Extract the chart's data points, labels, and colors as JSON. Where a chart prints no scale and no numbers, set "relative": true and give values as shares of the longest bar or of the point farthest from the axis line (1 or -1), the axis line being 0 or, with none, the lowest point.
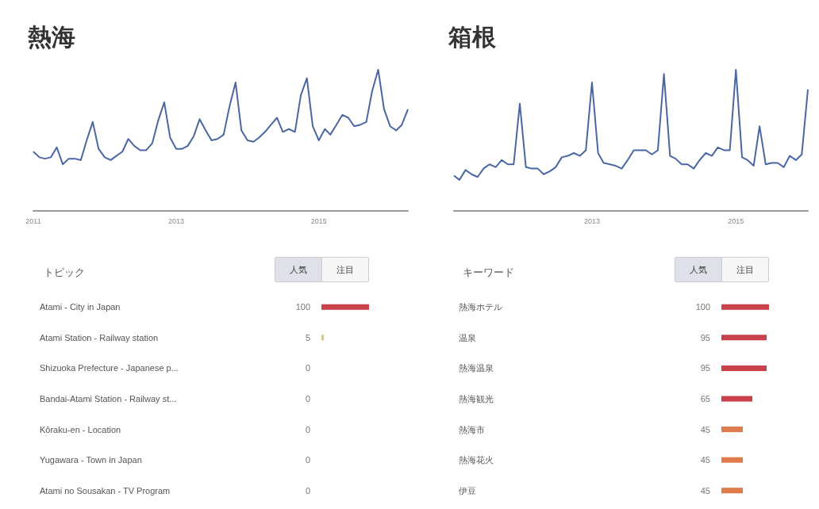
{
  "chart_data": [
    {
      "type": "line",
      "title": "熱海",
      "relative": true,
      "xlim": [
        "2011-01",
        "2016-04"
      ],
      "xticks": [
        "2011",
        "2013",
        "2015"
      ],
      "x": [
        "2011-01",
        "2011-02",
        "2011-03",
        "2011-04",
        "2011-05",
        "2011-06",
        "2011-07",
        "2011-08",
        "2011-09",
        "2011-10",
        "2011-11",
        "2011-12",
        "2012-01",
        "2012-02",
        "2012-03",
        "2012-04",
        "2012-05",
        "2012-06",
        "2012-07",
        "2012-08",
        "2012-09",
        "2012-10",
        "2012-11",
        "2012-12",
        "2013-01",
        "2013-02",
        "2013-03",
        "2013-04",
        "2013-05",
        "2013-06",
        "2013-07",
        "2013-08",
        "2013-09",
        "2013-10",
        "2013-11",
        "2013-12",
        "2014-01",
        "2014-02",
        "2014-03",
        "2014-04",
        "2014-05",
        "2014-06",
        "2014-07",
        "2014-08",
        "2014-09",
        "2014-10",
        "2014-11",
        "2014-12",
        "2015-01",
        "2015-02",
        "2015-03",
        "2015-04",
        "2015-05",
        "2015-06",
        "2015-07",
        "2015-08",
        "2015-09",
        "2015-10",
        "2015-11",
        "2015-12",
        "2016-01",
        "2016-02",
        "2016-03",
        "2016-04"
      ],
      "series": [
        {
          "color": "#4a67a3",
          "values": [
            0.42,
            0.38,
            0.37,
            0.38,
            0.45,
            0.33,
            0.37,
            0.37,
            0.36,
            0.5,
            0.63,
            0.44,
            0.38,
            0.36,
            0.39,
            0.42,
            0.51,
            0.46,
            0.43,
            0.43,
            0.48,
            0.64,
            0.77,
            0.52,
            0.44,
            0.44,
            0.46,
            0.53,
            0.65,
            0.57,
            0.5,
            0.51,
            0.54,
            0.74,
            0.91,
            0.57,
            0.5,
            0.49,
            0.52,
            0.56,
            0.61,
            0.66,
            0.56,
            0.58,
            0.56,
            0.82,
            0.94,
            0.6,
            0.5,
            0.58,
            0.54,
            0.61,
            0.68,
            0.66,
            0.6,
            0.61,
            0.63,
            0.85,
            1,
            0.72,
            0.6,
            0.57,
            0.61,
            0.72
          ]
        }
      ],
      "grid": false,
      "marker": "none"
    },
    {
      "type": "line",
      "title": "箱根",
      "relative": true,
      "xlim": [
        "2011-02",
        "2016-01"
      ],
      "xticks": [
        "2013",
        "2015"
      ],
      "x": [
        "2011-02",
        "2011-03",
        "2011-04",
        "2011-05",
        "2011-06",
        "2011-07",
        "2011-08",
        "2011-09",
        "2011-10",
        "2011-11",
        "2011-12",
        "2012-01",
        "2012-02",
        "2012-03",
        "2012-04",
        "2012-05",
        "2012-06",
        "2012-07",
        "2012-08",
        "2012-09",
        "2012-10",
        "2012-11",
        "2012-12",
        "2013-01",
        "2013-02",
        "2013-03",
        "2013-04",
        "2013-05",
        "2013-06",
        "2013-07",
        "2013-08",
        "2013-09",
        "2013-10",
        "2013-11",
        "2013-12",
        "2014-01",
        "2014-02",
        "2014-03",
        "2014-04",
        "2014-05",
        "2014-06",
        "2014-07",
        "2014-08",
        "2014-09",
        "2014-10",
        "2014-11",
        "2014-12",
        "2015-01",
        "2015-02",
        "2015-03",
        "2015-04",
        "2015-05",
        "2015-06",
        "2015-07",
        "2015-08",
        "2015-09",
        "2015-10",
        "2015-11",
        "2015-12",
        "2016-01"
      ],
      "series": [
        {
          "color": "#4a67a3",
          "values": [
            0.25,
            0.22,
            0.29,
            0.26,
            0.24,
            0.3,
            0.33,
            0.31,
            0.36,
            0.33,
            0.33,
            0.76,
            0.31,
            0.3,
            0.3,
            0.26,
            0.28,
            0.31,
            0.38,
            0.39,
            0.41,
            0.39,
            0.43,
            0.91,
            0.41,
            0.34,
            0.33,
            0.32,
            0.3,
            0.36,
            0.43,
            0.43,
            0.43,
            0.4,
            0.43,
            0.97,
            0.39,
            0.37,
            0.33,
            0.33,
            0.3,
            0.36,
            0.41,
            0.39,
            0.45,
            0.43,
            0.43,
            1,
            0.38,
            0.36,
            0.32,
            0.6,
            0.33,
            0.34,
            0.34,
            0.31,
            0.39,
            0.36,
            0.4,
            0.86
          ]
        }
      ],
      "grid": false,
      "marker": "none"
    },
    {
      "type": "bar",
      "orientation": "horizontal",
      "title": "トピック",
      "annotations": [
        "人気",
        "注目"
      ],
      "categories": [
        "Atami - City in Japan",
        "Atami Station - Railway station",
        "Shizuoka Prefecture - Japanese p...",
        "Bandai-Atami Station - Railway st...",
        "Kōraku-en - Location",
        "Yugawara - Town in Japan",
        "Atami no Sousakan - TV Program"
      ],
      "values": [
        100,
        5,
        0,
        0,
        0,
        0,
        0
      ],
      "colors": [
        "#c8414b",
        "#e2c46a",
        "#c8414b",
        "#c8414b",
        "#c8414b",
        "#c8414b",
        "#c8414b"
      ],
      "xlim": [
        0,
        100
      ],
      "tick_labels": "y",
      "data_labels": true,
      "grid": false
    },
    {
      "type": "bar",
      "orientation": "horizontal",
      "title": "キーワード",
      "annotations": [
        "人気",
        "注目"
      ],
      "categories": [
        "熱海ホテル",
        "温泉",
        "熱海温泉",
        "熱海観光",
        "熱海市",
        "熱海花火",
        "伊豆"
      ],
      "values": [
        100,
        95,
        95,
        65,
        45,
        45,
        45
      ],
      "colors": [
        "#c8414b",
        "#c8414b",
        "#c8414b",
        "#c8414b",
        "#e07b4b",
        "#e07b4b",
        "#e07b4b"
      ],
      "xlim": [
        0,
        100
      ],
      "tick_labels": "y",
      "data_labels": true,
      "grid": false
    }
  ]
}
